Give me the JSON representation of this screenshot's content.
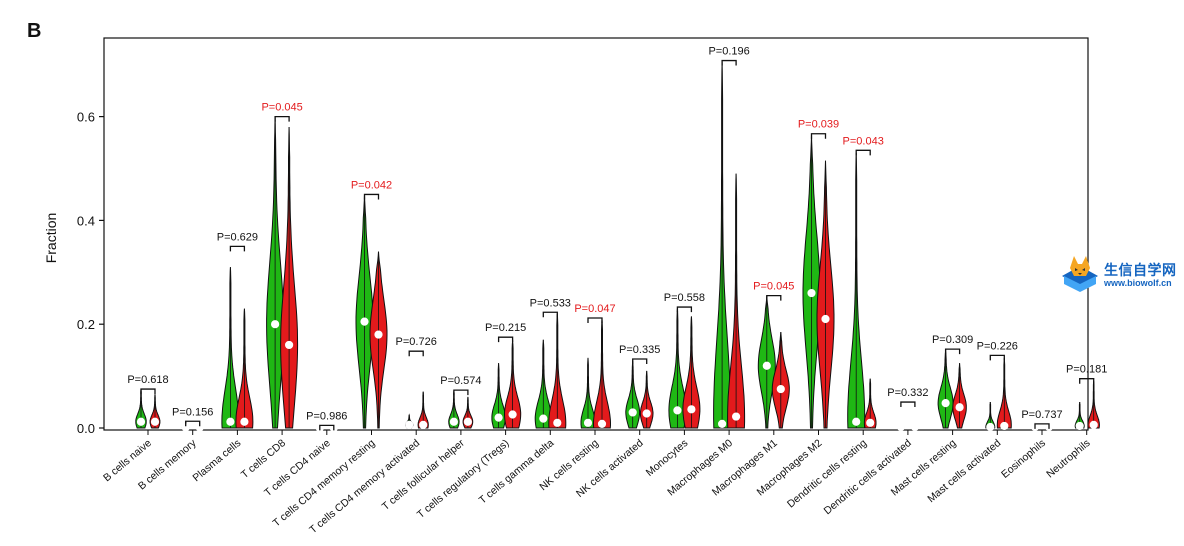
{
  "panel_label": "B",
  "watermark": {
    "title": "生信自学网",
    "url": "www.biowolf.cn"
  },
  "colors": {
    "group1": "#1fb814",
    "group2": "#e31a1c",
    "significant": "#e31a1c",
    "normal": "#111111"
  },
  "chart_data": {
    "type": "violin",
    "title": "",
    "xlabel": "",
    "ylabel": "Fraction",
    "ylim": [
      0,
      0.72
    ],
    "yticks": [
      "0.0",
      "0.2",
      "0.4",
      "0.6"
    ],
    "ytick_values": [
      0,
      0.2,
      0.4,
      0.6
    ],
    "grid": false,
    "legend": "none",
    "series": [
      {
        "color": "#1fb814",
        "max": [
          0.075,
          0.012,
          0.31,
          0.6,
          0.004,
          0.45,
          0.025,
          0.072,
          0.125,
          0.17,
          0.135,
          0.13,
          0.23,
          0.705,
          0.255,
          0.565,
          0.53,
          0.005,
          0.15,
          0.05,
          0.008,
          0.05
        ],
        "median": [
          0.012,
          0.001,
          0.012,
          0.2,
          0.0,
          0.205,
          0.006,
          0.012,
          0.02,
          0.018,
          0.01,
          0.03,
          0.034,
          0.008,
          0.12,
          0.26,
          0.012,
          0.002,
          0.048,
          0.002,
          0.002,
          0.004
        ]
      },
      {
        "color": "#e31a1c",
        "max": [
          0.065,
          0.008,
          0.23,
          0.58,
          0.004,
          0.34,
          0.07,
          0.06,
          0.17,
          0.22,
          0.21,
          0.11,
          0.215,
          0.49,
          0.185,
          0.515,
          0.095,
          0.004,
          0.125,
          0.135,
          0.005,
          0.09
        ],
        "median": [
          0.012,
          0.001,
          0.012,
          0.16,
          0.0,
          0.18,
          0.006,
          0.012,
          0.026,
          0.01,
          0.008,
          0.028,
          0.036,
          0.022,
          0.075,
          0.21,
          0.01,
          0.002,
          0.04,
          0.004,
          0.002,
          0.006
        ]
      }
    ],
    "categories": [
      "B cells naive",
      "B cells memory",
      "Plasma cells",
      "T cells CD8",
      "T cells CD4 naive",
      "T cells CD4 memory resting",
      "T cells CD4 memory activated",
      "T cells follicular helper",
      "T cells regulatory (Tregs)",
      "T cells gamma delta",
      "NK cells resting",
      "NK cells activated",
      "Monocytes",
      "Macrophages M0",
      "Macrophages M1",
      "Macrophages M2",
      "Dendritic cells resting",
      "Dendritic cells activated",
      "Mast cells resting",
      "Mast cells activated",
      "Eosinophils",
      "Neutrophils"
    ],
    "annotations": [
      {
        "text": "P=0.618",
        "significant": false,
        "y": 0.075
      },
      {
        "text": "P=0.156",
        "significant": false,
        "y": 0.013
      },
      {
        "text": "P=0.629",
        "significant": false,
        "y": 0.35
      },
      {
        "text": "P=0.045",
        "significant": true,
        "y": 0.6
      },
      {
        "text": "P=0.986",
        "significant": false,
        "y": 0.005
      },
      {
        "text": "P=0.042",
        "significant": true,
        "y": 0.45
      },
      {
        "text": "P=0.726",
        "significant": false,
        "y": 0.148
      },
      {
        "text": "P=0.574",
        "significant": false,
        "y": 0.073
      },
      {
        "text": "P=0.215",
        "significant": false,
        "y": 0.175
      },
      {
        "text": "P=0.533",
        "significant": false,
        "y": 0.223
      },
      {
        "text": "P=0.047",
        "significant": true,
        "y": 0.212
      },
      {
        "text": "P=0.335",
        "significant": false,
        "y": 0.133
      },
      {
        "text": "P=0.558",
        "significant": false,
        "y": 0.233
      },
      {
        "text": "P=0.196",
        "significant": false,
        "y": 0.708
      },
      {
        "text": "P=0.045",
        "significant": true,
        "y": 0.255
      },
      {
        "text": "P=0.039",
        "significant": true,
        "y": 0.567
      },
      {
        "text": "P=0.043",
        "significant": true,
        "y": 0.535
      },
      {
        "text": "P=0.332",
        "significant": false,
        "y": 0.05
      },
      {
        "text": "P=0.309",
        "significant": false,
        "y": 0.152
      },
      {
        "text": "P=0.226",
        "significant": false,
        "y": 0.14
      },
      {
        "text": "P=0.737",
        "significant": false,
        "y": 0.008
      },
      {
        "text": "P=0.181",
        "significant": false,
        "y": 0.095
      }
    ]
  }
}
